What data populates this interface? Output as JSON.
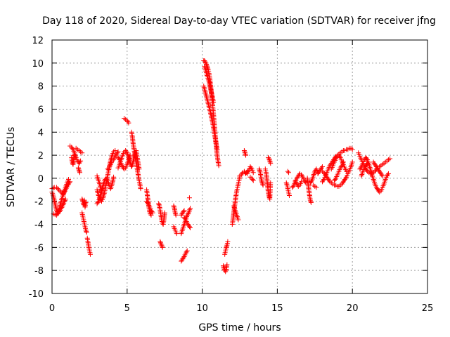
{
  "chart_data": {
    "type": "scatter",
    "title": "Day 118 of 2020, Sidereal Day-to-day VTEC variation (SDTVAR) for receiver jfng",
    "xlabel": "GPS time / hours",
    "ylabel": "SDTVAR / TECUs",
    "xlim": [
      0,
      25
    ],
    "ylim": [
      -10,
      12
    ],
    "x_ticks": [
      0,
      5,
      10,
      15,
      20,
      25
    ],
    "x_tick_labels": [
      "0",
      "5",
      "10",
      "15",
      "20",
      "25"
    ],
    "y_ticks": [
      -10,
      -8,
      -6,
      -4,
      -2,
      0,
      2,
      4,
      6,
      8,
      10,
      12
    ],
    "y_tick_labels": [
      "-10",
      "-8",
      "-6",
      "-4",
      "-2",
      "0",
      "2",
      "4",
      "6",
      "8",
      "10",
      "12"
    ],
    "grid": true,
    "marker": "+",
    "series_color": "#ff0000",
    "segments": [
      {
        "x": [
          0.0,
          0.1,
          0.2,
          0.3,
          0.4,
          0.5,
          0.6,
          0.7,
          0.8,
          0.9,
          1.0,
          1.1
        ],
        "y": [
          -1.2,
          -1.6,
          -2.2,
          -2.8,
          -3.0,
          -2.6,
          -2.0,
          -1.6,
          -1.2,
          -0.8,
          -0.4,
          -0.1
        ]
      },
      {
        "x": [
          0.0,
          0.15,
          0.3,
          0.45,
          0.6,
          0.75,
          0.9,
          1.05,
          1.2
        ],
        "y": [
          -0.9,
          -0.8,
          -0.8,
          -1.0,
          -1.2,
          -1.4,
          -1.0,
          -0.6,
          -0.3
        ]
      },
      {
        "x": [
          0.1,
          0.3,
          0.5,
          0.7,
          0.9
        ],
        "y": [
          -3.1,
          -3.2,
          -2.9,
          -2.4,
          -1.8
        ]
      },
      {
        "x": [
          1.2,
          1.3,
          1.4,
          1.5,
          1.6,
          1.7,
          1.8,
          1.9
        ],
        "y": [
          2.8,
          2.7,
          2.5,
          2.2,
          1.8,
          1.5,
          1.3,
          1.5
        ]
      },
      {
        "x": [
          1.3,
          1.35,
          1.4,
          1.45,
          1.5
        ],
        "y": [
          1.8,
          1.4,
          1.2,
          1.6,
          2.1
        ]
      },
      {
        "x": [
          1.6,
          1.7,
          1.8,
          1.9,
          2.0
        ],
        "y": [
          2.6,
          2.5,
          2.4,
          2.3,
          2.2
        ]
      },
      {
        "x": [
          1.75,
          1.8,
          1.85
        ],
        "y": [
          0.9,
          0.7,
          0.5
        ]
      },
      {
        "x": [
          2.0,
          2.05,
          2.1,
          2.15,
          2.2,
          2.25
        ],
        "y": [
          -1.8,
          -2.0,
          -2.3,
          -1.9,
          -2.5,
          -2.1
        ]
      },
      {
        "x": [
          2.0,
          2.05,
          2.1,
          2.15,
          2.2,
          2.25,
          2.3
        ],
        "y": [
          -3.0,
          -3.3,
          -3.6,
          -3.9,
          -4.2,
          -4.5,
          -4.7
        ]
      },
      {
        "x": [
          2.35,
          2.4,
          2.45,
          2.5,
          2.55
        ],
        "y": [
          -5.2,
          -5.6,
          -6.0,
          -6.3,
          -6.6
        ]
      },
      {
        "x": [
          3.0,
          3.1,
          3.2,
          3.3,
          3.4,
          3.5,
          3.6,
          3.7,
          3.8,
          3.9,
          4.0,
          4.1,
          4.2
        ],
        "y": [
          -1.0,
          -1.5,
          -1.8,
          -2.0,
          -1.7,
          -1.2,
          -0.5,
          0.2,
          0.9,
          1.5,
          2.0,
          2.3,
          2.4
        ]
      },
      {
        "x": [
          3.0,
          3.1,
          3.2,
          3.3,
          3.4,
          3.5,
          3.6,
          3.7,
          3.8,
          3.9,
          4.0,
          4.1
        ],
        "y": [
          -2.2,
          -2.0,
          -1.6,
          -1.0,
          -0.6,
          -0.2,
          0.0,
          -0.2,
          -0.6,
          -0.9,
          -0.5,
          0.1
        ]
      },
      {
        "x": [
          3.0,
          3.1,
          3.2,
          3.3
        ],
        "y": [
          0.2,
          -0.2,
          -0.6,
          -1.2
        ]
      },
      {
        "x": [
          3.7,
          3.8,
          3.9,
          4.0,
          4.1,
          4.2,
          4.3,
          4.4
        ],
        "y": [
          0.8,
          0.9,
          1.2,
          1.5,
          1.6,
          1.9,
          2.1,
          2.3
        ]
      },
      {
        "x": [
          4.4,
          4.5,
          4.6,
          4.7,
          4.8,
          4.9,
          5.0,
          5.1,
          5.2,
          5.3
        ],
        "y": [
          0.9,
          1.2,
          1.6,
          2.0,
          2.3,
          2.4,
          2.2,
          1.8,
          1.4,
          1.0
        ]
      },
      {
        "x": [
          4.4,
          4.5,
          4.6,
          4.7,
          4.8,
          4.9,
          5.0,
          5.1,
          5.2
        ],
        "y": [
          1.8,
          1.6,
          1.3,
          1.0,
          0.8,
          0.9,
          1.2,
          1.6,
          2.0
        ]
      },
      {
        "x": [
          4.8,
          4.9,
          5.0,
          5.1
        ],
        "y": [
          5.2,
          5.1,
          5.0,
          4.8
        ]
      },
      {
        "x": [
          5.3,
          5.35,
          5.4,
          5.45,
          5.5,
          5.55,
          5.6,
          5.65,
          5.7,
          5.75,
          5.8,
          5.85,
          5.9
        ],
        "y": [
          4.0,
          3.6,
          3.0,
          2.6,
          2.2,
          1.8,
          1.4,
          1.0,
          0.6,
          0.2,
          -0.2,
          -0.5,
          -0.9
        ]
      },
      {
        "x": [
          5.3,
          5.4,
          5.5,
          5.6,
          5.7,
          5.8
        ],
        "y": [
          1.0,
          1.4,
          2.0,
          2.4,
          1.6,
          0.8
        ]
      },
      {
        "x": [
          6.3,
          6.35,
          6.4,
          6.45,
          6.5,
          6.55,
          6.6
        ],
        "y": [
          -1.0,
          -1.5,
          -2.0,
          -2.5,
          -2.9,
          -3.1,
          -3.2
        ]
      },
      {
        "x": [
          6.3,
          6.4,
          6.5,
          6.6,
          6.7
        ],
        "y": [
          -2.0,
          -2.2,
          -2.5,
          -2.8,
          -3.0
        ]
      },
      {
        "x": [
          7.1,
          7.15,
          7.2,
          7.25,
          7.3,
          7.35,
          7.4,
          7.45,
          7.5
        ],
        "y": [
          -2.2,
          -2.4,
          -2.8,
          -3.2,
          -3.6,
          -3.9,
          -4.0,
          -3.6,
          -3.0
        ]
      },
      {
        "x": [
          7.2,
          7.25,
          7.3,
          7.35
        ],
        "y": [
          -5.5,
          -5.7,
          -5.8,
          -6.0
        ]
      },
      {
        "x": [
          8.1,
          8.15,
          8.2,
          8.25
        ],
        "y": [
          -2.4,
          -2.6,
          -3.0,
          -3.2
        ]
      },
      {
        "x": [
          8.1,
          8.2,
          8.3
        ],
        "y": [
          -4.2,
          -4.5,
          -4.8
        ]
      },
      {
        "x": [
          8.6,
          8.7,
          8.8,
          8.9,
          9.0,
          9.1,
          9.2
        ],
        "y": [
          -4.8,
          -4.4,
          -4.0,
          -3.6,
          -3.2,
          -3.0,
          -2.6
        ]
      },
      {
        "x": [
          8.8,
          8.9,
          9.0,
          9.1,
          9.2
        ],
        "y": [
          -3.4,
          -3.6,
          -3.9,
          -4.1,
          -4.3
        ]
      },
      {
        "x": [
          8.6,
          8.7,
          8.8,
          8.9,
          9.0
        ],
        "y": [
          -7.2,
          -7.0,
          -6.8,
          -6.5,
          -6.3
        ]
      },
      {
        "x": [
          8.6,
          8.7,
          8.8
        ],
        "y": [
          -3.2,
          -3.0,
          -2.8
        ]
      },
      {
        "x": [
          9.15
        ],
        "y": [
          -1.7
        ]
      },
      {
        "x": [
          10.1,
          10.15,
          10.2,
          10.25,
          10.3,
          10.35,
          10.4,
          10.45,
          10.5,
          10.55,
          10.6,
          10.65,
          10.7,
          10.75,
          10.8,
          10.85,
          10.9,
          10.95,
          11.0,
          11.05,
          11.1
        ],
        "y": [
          10.2,
          10.2,
          10.1,
          10.0,
          9.8,
          9.6,
          9.4,
          9.1,
          8.7,
          8.2,
          7.6,
          7.0,
          6.3,
          5.6,
          4.8,
          4.0,
          3.3,
          2.6,
          2.0,
          1.5,
          1.1
        ]
      },
      {
        "x": [
          10.1,
          10.2,
          10.3,
          10.4,
          10.5,
          10.6,
          10.7,
          10.8,
          10.9,
          11.0
        ],
        "y": [
          8.0,
          7.5,
          7.0,
          6.5,
          6.0,
          5.4,
          4.8,
          4.0,
          3.2,
          2.5
        ]
      },
      {
        "x": [
          10.15,
          10.25,
          10.35,
          10.45,
          10.55,
          10.65,
          10.75
        ],
        "y": [
          9.7,
          9.3,
          8.8,
          8.4,
          7.8,
          7.2,
          6.6
        ]
      },
      {
        "x": [
          11.4,
          11.45,
          11.5,
          11.55,
          11.6,
          11.65
        ],
        "y": [
          -7.6,
          -7.8,
          -8.0,
          -8.1,
          -7.9,
          -7.5
        ]
      },
      {
        "x": [
          11.5,
          11.55,
          11.6,
          11.65,
          11.7
        ],
        "y": [
          -6.6,
          -6.3,
          -6.0,
          -5.8,
          -5.5
        ]
      },
      {
        "x": [
          12.0,
          12.05,
          12.1,
          12.15,
          12.2,
          12.25,
          12.3,
          12.35,
          12.4,
          12.45,
          12.5
        ],
        "y": [
          -4.0,
          -3.6,
          -3.0,
          -2.5,
          -2.0,
          -1.5,
          -1.1,
          -0.8,
          -0.5,
          -0.2,
          0.1
        ]
      },
      {
        "x": [
          12.1,
          12.2,
          12.3,
          12.4
        ],
        "y": [
          -2.4,
          -2.8,
          -3.2,
          -3.6
        ]
      },
      {
        "x": [
          12.5,
          12.6,
          12.7,
          12.8,
          12.9,
          13.0
        ],
        "y": [
          0.2,
          0.3,
          0.5,
          0.6,
          0.4,
          0.6
        ]
      },
      {
        "x": [
          12.8,
          12.85,
          12.9
        ],
        "y": [
          2.4,
          2.2,
          2.0
        ]
      },
      {
        "x": [
          13.0,
          13.1,
          13.2,
          13.3,
          13.4
        ],
        "y": [
          0.4,
          0.7,
          1.0,
          0.8,
          0.5
        ]
      },
      {
        "x": [
          13.2,
          13.3,
          13.4
        ],
        "y": [
          0.1,
          0.0,
          -0.2
        ]
      },
      {
        "x": [
          13.8,
          13.85,
          13.9,
          13.95,
          14.0,
          14.05
        ],
        "y": [
          0.8,
          0.6,
          0.2,
          -0.2,
          -0.4,
          -0.6
        ]
      },
      {
        "x": [
          14.2,
          14.25,
          14.3,
          14.35,
          14.4,
          14.45,
          14.5,
          14.55
        ],
        "y": [
          0.8,
          0.5,
          0.0,
          -0.6,
          -1.2,
          -1.6,
          -1.8,
          -0.4
        ]
      },
      {
        "x": [
          14.4,
          14.45,
          14.5,
          14.55
        ],
        "y": [
          1.8,
          1.7,
          1.5,
          1.3
        ]
      },
      {
        "x": [
          15.6,
          15.65,
          15.7,
          15.75,
          15.8
        ],
        "y": [
          -0.4,
          -0.6,
          -0.9,
          -1.2,
          -1.5
        ]
      },
      {
        "x": [
          15.7,
          15.75
        ],
        "y": [
          0.6,
          0.5
        ]
      },
      {
        "x": [
          16.0,
          16.1,
          16.2,
          16.3,
          16.4,
          16.5,
          16.6,
          16.7,
          16.8,
          16.9
        ],
        "y": [
          -0.8,
          -0.6,
          -0.3,
          0.0,
          0.2,
          0.4,
          0.3,
          0.1,
          -0.2,
          -0.4
        ]
      },
      {
        "x": [
          16.2,
          16.3,
          16.4,
          16.5,
          16.6
        ],
        "y": [
          -0.2,
          -0.5,
          -0.7,
          -0.6,
          -0.3
        ]
      },
      {
        "x": [
          17.0,
          17.05,
          17.1,
          17.15,
          17.2,
          17.25
        ],
        "y": [
          0.0,
          -0.5,
          -1.0,
          -1.5,
          -1.9,
          -2.1
        ]
      },
      {
        "x": [
          17.2,
          17.3,
          17.4,
          17.5,
          17.6,
          17.7
        ],
        "y": [
          -0.4,
          -0.2,
          0.2,
          0.6,
          0.8,
          0.5
        ]
      },
      {
        "x": [
          17.4,
          17.5,
          17.6
        ],
        "y": [
          -0.6,
          -0.7,
          -0.8
        ]
      },
      {
        "x": [
          17.7,
          17.8,
          17.9,
          18.0
        ],
        "y": [
          0.4,
          0.6,
          0.8,
          1.0
        ]
      },
      {
        "x": [
          18.0,
          18.1,
          18.2,
          18.3,
          18.4,
          18.5,
          18.6,
          18.7,
          18.8,
          18.9,
          19.0,
          19.1,
          19.2,
          19.3,
          19.4,
          19.5,
          19.6,
          19.7,
          19.8,
          19.9,
          20.0
        ],
        "y": [
          -0.3,
          -0.1,
          0.2,
          0.5,
          0.8,
          1.1,
          1.3,
          1.5,
          1.7,
          1.9,
          2.0,
          2.1,
          2.2,
          2.3,
          2.4,
          2.4,
          2.5,
          2.5,
          2.6,
          2.6,
          2.5
        ]
      },
      {
        "x": [
          18.0,
          18.1,
          18.2,
          18.3,
          18.4,
          18.5,
          18.6,
          18.7,
          18.8,
          18.9,
          19.0,
          19.1,
          19.2,
          19.3,
          19.4,
          19.5,
          19.6,
          19.7,
          19.8,
          19.9,
          20.0
        ],
        "y": [
          0.6,
          0.5,
          0.3,
          0.1,
          -0.1,
          -0.3,
          -0.4,
          -0.5,
          -0.6,
          -0.6,
          -0.7,
          -0.7,
          -0.6,
          -0.5,
          -0.3,
          -0.1,
          0.1,
          0.4,
          0.7,
          1.0,
          1.4
        ]
      },
      {
        "x": [
          18.6,
          18.7,
          18.8,
          18.9,
          19.0,
          19.1,
          19.2,
          19.3,
          19.4,
          19.5,
          19.6
        ],
        "y": [
          0.8,
          1.1,
          1.4,
          1.7,
          1.9,
          2.0,
          1.8,
          1.5,
          1.2,
          0.9,
          0.6
        ]
      },
      {
        "x": [
          18.8,
          18.9,
          19.0,
          19.1,
          19.2,
          19.3,
          19.4
        ],
        "y": [
          -0.2,
          0.0,
          0.3,
          0.6,
          0.9,
          1.1,
          1.4
        ]
      },
      {
        "x": [
          20.4,
          20.5,
          20.6,
          20.7,
          20.8,
          20.9,
          21.0,
          21.1,
          21.2,
          21.3,
          21.4,
          21.5,
          21.6,
          21.7,
          21.8,
          21.9,
          22.0,
          22.1,
          22.2,
          22.3,
          22.4,
          22.5
        ],
        "y": [
          2.2,
          1.9,
          1.6,
          1.3,
          1.0,
          0.8,
          0.6,
          0.5,
          0.4,
          0.4,
          0.5,
          0.6,
          0.8,
          0.9,
          1.0,
          1.1,
          1.2,
          1.3,
          1.4,
          1.5,
          1.6,
          1.7
        ]
      },
      {
        "x": [
          20.5,
          20.6,
          20.7,
          20.8,
          20.9,
          21.0,
          21.1,
          21.2,
          21.3,
          21.4,
          21.5,
          21.6,
          21.7,
          21.8,
          21.9,
          22.0,
          22.1,
          22.2,
          22.3,
          22.4
        ],
        "y": [
          0.8,
          1.0,
          1.3,
          1.6,
          1.8,
          1.6,
          1.2,
          0.8,
          0.3,
          -0.1,
          -0.5,
          -0.8,
          -1.0,
          -1.2,
          -1.1,
          -0.8,
          -0.5,
          -0.1,
          0.2,
          0.4
        ]
      },
      {
        "x": [
          20.6,
          20.7,
          20.8,
          20.9,
          21.0
        ],
        "y": [
          0.2,
          0.6,
          0.9,
          1.1,
          1.3
        ]
      },
      {
        "x": [
          21.4,
          21.5,
          21.6,
          21.7,
          21.8,
          21.9,
          22.0
        ],
        "y": [
          1.4,
          1.2,
          1.0,
          0.8,
          0.6,
          0.4,
          0.2
        ]
      }
    ]
  }
}
